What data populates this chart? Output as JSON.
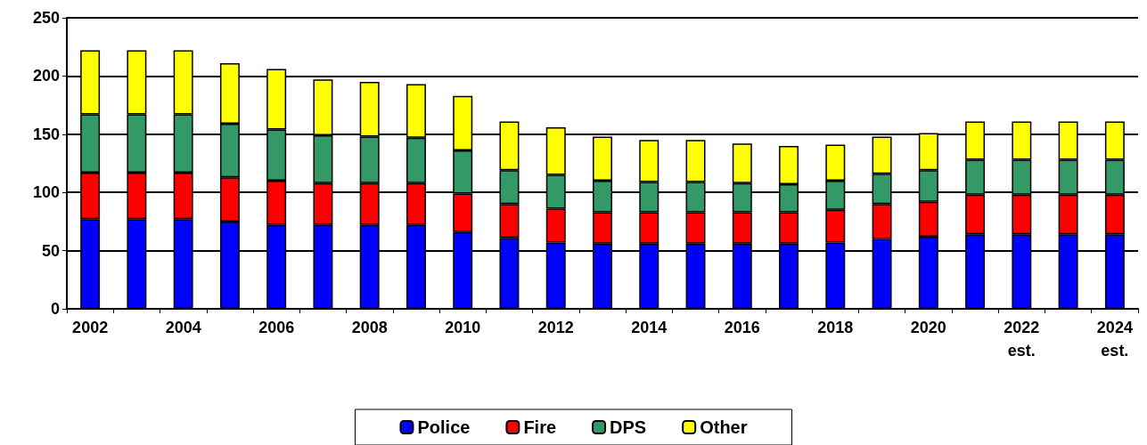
{
  "chart_data": {
    "type": "bar",
    "stacked": true,
    "categories": [
      "2002",
      null,
      "2004",
      null,
      "2006",
      null,
      "2008",
      null,
      "2010",
      null,
      "2012",
      null,
      "2014",
      null,
      "2016",
      null,
      "2018",
      null,
      "2020",
      null,
      "2022\nest.",
      null,
      "2024\nest."
    ],
    "series": [
      {
        "name": "Police",
        "color": "#0000ff",
        "values": [
          77,
          77,
          77,
          75,
          72,
          72,
          72,
          72,
          66,
          61,
          57,
          56,
          56,
          56,
          56,
          56,
          57,
          60,
          62,
          64,
          64,
          64,
          64
        ]
      },
      {
        "name": "Fire",
        "color": "#ff0000",
        "values": [
          40,
          40,
          40,
          38,
          38,
          36,
          36,
          36,
          33,
          29,
          29,
          27,
          27,
          27,
          27,
          27,
          28,
          30,
          30,
          34,
          34,
          34,
          34
        ]
      },
      {
        "name": "DPS",
        "color": "#339966",
        "values": [
          50,
          50,
          50,
          46,
          44,
          41,
          40,
          39,
          37,
          29,
          29,
          27,
          26,
          26,
          25,
          24,
          25,
          26,
          27,
          30,
          30,
          30,
          30
        ]
      },
      {
        "name": "Other",
        "color": "#ffff00",
        "values": [
          55,
          55,
          55,
          52,
          52,
          48,
          47,
          46,
          47,
          42,
          41,
          38,
          36,
          36,
          34,
          33,
          31,
          32,
          32,
          33,
          33,
          33,
          33
        ]
      }
    ],
    "ylim": [
      0,
      250
    ],
    "yticks": [
      0,
      50,
      100,
      150,
      200,
      250
    ],
    "grid": "y",
    "legend": "bottom"
  }
}
